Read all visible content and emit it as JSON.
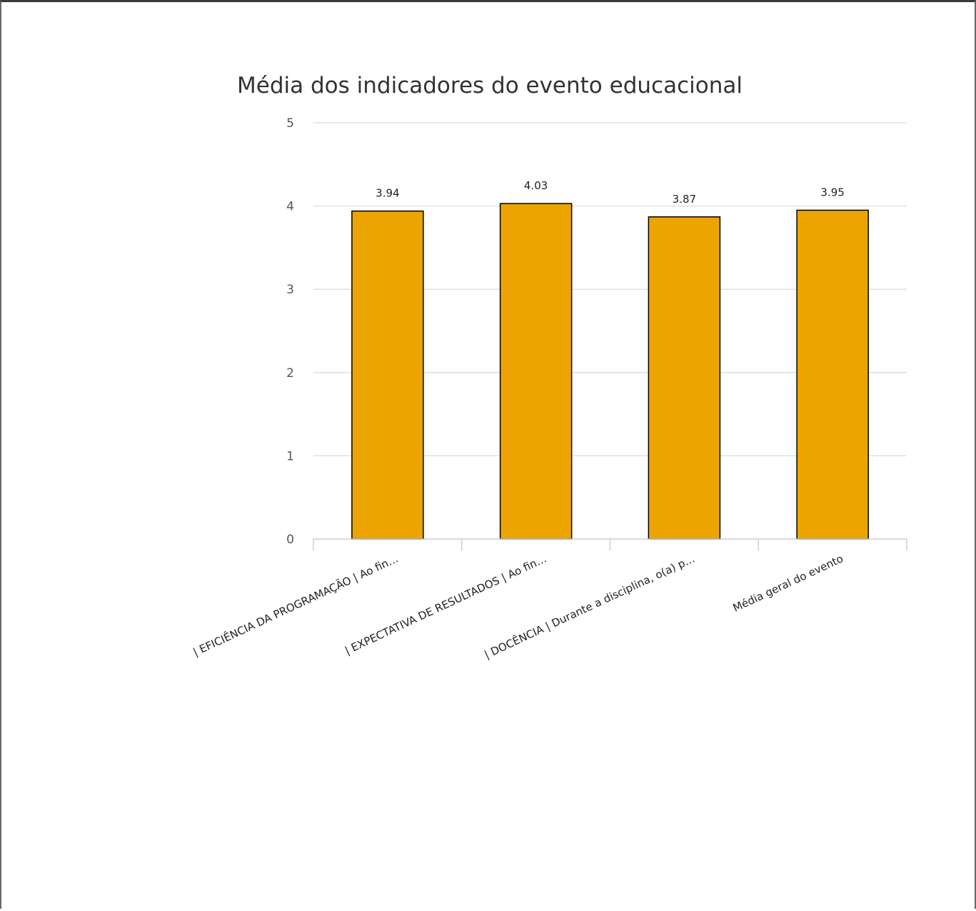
{
  "chart_data": {
    "type": "bar",
    "title": "Média dos indicadores do evento educacional",
    "xlabel": "",
    "ylabel": "",
    "categories": [
      "| EFICIÊNCIA DA PROGRAMAÇÃO | Ao fin…",
      "| EXPECTATIVA DE RESULTADOS | Ao fin…",
      "| DOCÊNCIA | Durante a disciplina, o(a) p…",
      "Média geral do evento"
    ],
    "values": [
      3.94,
      4.03,
      3.87,
      3.95
    ],
    "data_labels": [
      "3.94",
      "4.03",
      "3.87",
      "3.95"
    ],
    "ylim": [
      0,
      5
    ],
    "yticks": [
      0,
      1,
      2,
      3,
      4,
      5
    ],
    "ytick_labels": [
      "0",
      "1",
      "2",
      "3",
      "4",
      "5"
    ],
    "grid": true,
    "legend": "none",
    "colors": {
      "bar": "#eca400",
      "bar_border": "#000000",
      "grid": "#d8dce3",
      "axis": "#c4cfdd"
    }
  }
}
